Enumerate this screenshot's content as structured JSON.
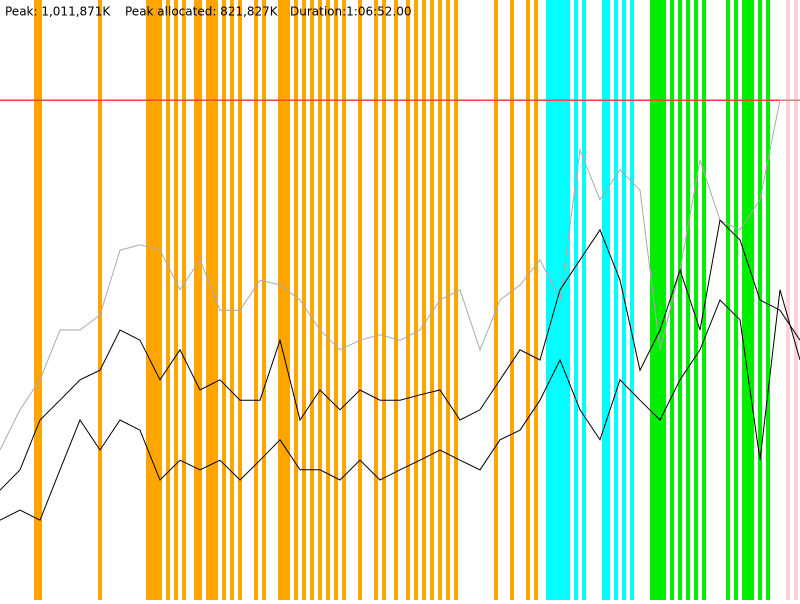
{
  "header": {
    "peak": "Peak: 1,011,871K",
    "peak_allocated": "Peak allocated: 821,827K",
    "duration": "Duration:1:06:52.00"
  },
  "chart_data": {
    "type": "line",
    "xlim": [
      0,
      100
    ],
    "ylim": [
      0,
      100
    ],
    "x": [
      0,
      2.5,
      5,
      7.5,
      10,
      12.5,
      15,
      17.5,
      20,
      22.5,
      25,
      27.5,
      30,
      32.5,
      35,
      37.5,
      40,
      42.5,
      45,
      47.5,
      50,
      52.5,
      55,
      57.5,
      60,
      62.5,
      65,
      67.5,
      70,
      72.5,
      75,
      77.5,
      80,
      82.5,
      85,
      87.5,
      90,
      92.5,
      95,
      97.5,
      100
    ],
    "series": [
      {
        "color": "#aaaaaa",
        "values": [
          25,
          31.7,
          36.7,
          45,
          45,
          47.5,
          58.3,
          59.2,
          58.3,
          51.7,
          56.7,
          48.3,
          48.3,
          53.3,
          52.5,
          50,
          45,
          41.7,
          43.3,
          44.2,
          43.3,
          45,
          50,
          51.7,
          41.7,
          50,
          52.5,
          56.7,
          50,
          75,
          66.7,
          71.7,
          68.3,
          41.7,
          55,
          73.3,
          63.3,
          61.7,
          66.7,
          83.3,
          83.3
        ]
      },
      {
        "color": "#000000",
        "values": [
          18.3,
          21.7,
          30,
          33.3,
          36.7,
          38.3,
          45,
          43.3,
          36.7,
          41.7,
          35,
          36.7,
          33.3,
          33.3,
          43.3,
          30,
          35,
          31.7,
          35,
          33.3,
          33.3,
          34.2,
          35,
          30,
          31.7,
          36.7,
          41.7,
          40,
          51.7,
          56.7,
          61.7,
          53.3,
          38.3,
          45,
          55,
          45,
          63.3,
          60,
          50,
          48.3,
          43.3
        ]
      },
      {
        "color": "#000000",
        "values": [
          13.3,
          15,
          13.3,
          21.7,
          30,
          25,
          30,
          28.3,
          20,
          23.3,
          21.7,
          23.3,
          20,
          23.3,
          26.7,
          21.7,
          21.7,
          20,
          23.3,
          20,
          21.7,
          23.3,
          25,
          23.3,
          21.7,
          26.7,
          28.3,
          33.3,
          40,
          31.7,
          26.7,
          36.7,
          33.3,
          30,
          36.7,
          41.7,
          50,
          46.7,
          23.3,
          51.7,
          40
        ]
      }
    ],
    "events": [
      {
        "color": "#ffa500",
        "x": [
          4.5,
          4.8,
          5,
          12.5,
          18.5,
          19,
          19.5,
          20,
          21,
          22,
          23,
          24.5,
          25,
          26,
          26.5,
          27,
          28,
          29,
          30,
          32,
          33,
          35,
          35.5,
          36,
          37,
          38,
          39,
          40,
          41,
          42,
          43,
          45,
          47,
          48,
          49.5,
          51,
          52,
          53,
          54,
          55,
          56,
          57,
          62,
          64,
          66,
          67
        ]
      },
      {
        "color": "#00ffff",
        "x": [
          68.5,
          69,
          69.5,
          70,
          70.5,
          71,
          72,
          73,
          75.5,
          76,
          77,
          78,
          79
        ]
      },
      {
        "color": "#00ee00",
        "x": [
          81.5,
          82,
          82.5,
          83,
          84,
          85,
          86,
          87,
          88,
          91,
          92,
          93,
          93.5,
          94,
          95,
          96
        ]
      },
      {
        "color": "#ffd0d8",
        "x": [
          98.5,
          99.5
        ]
      }
    ],
    "event_width": 0.5,
    "peak_line": {
      "value": 83.3,
      "color": "#ff4040"
    }
  }
}
